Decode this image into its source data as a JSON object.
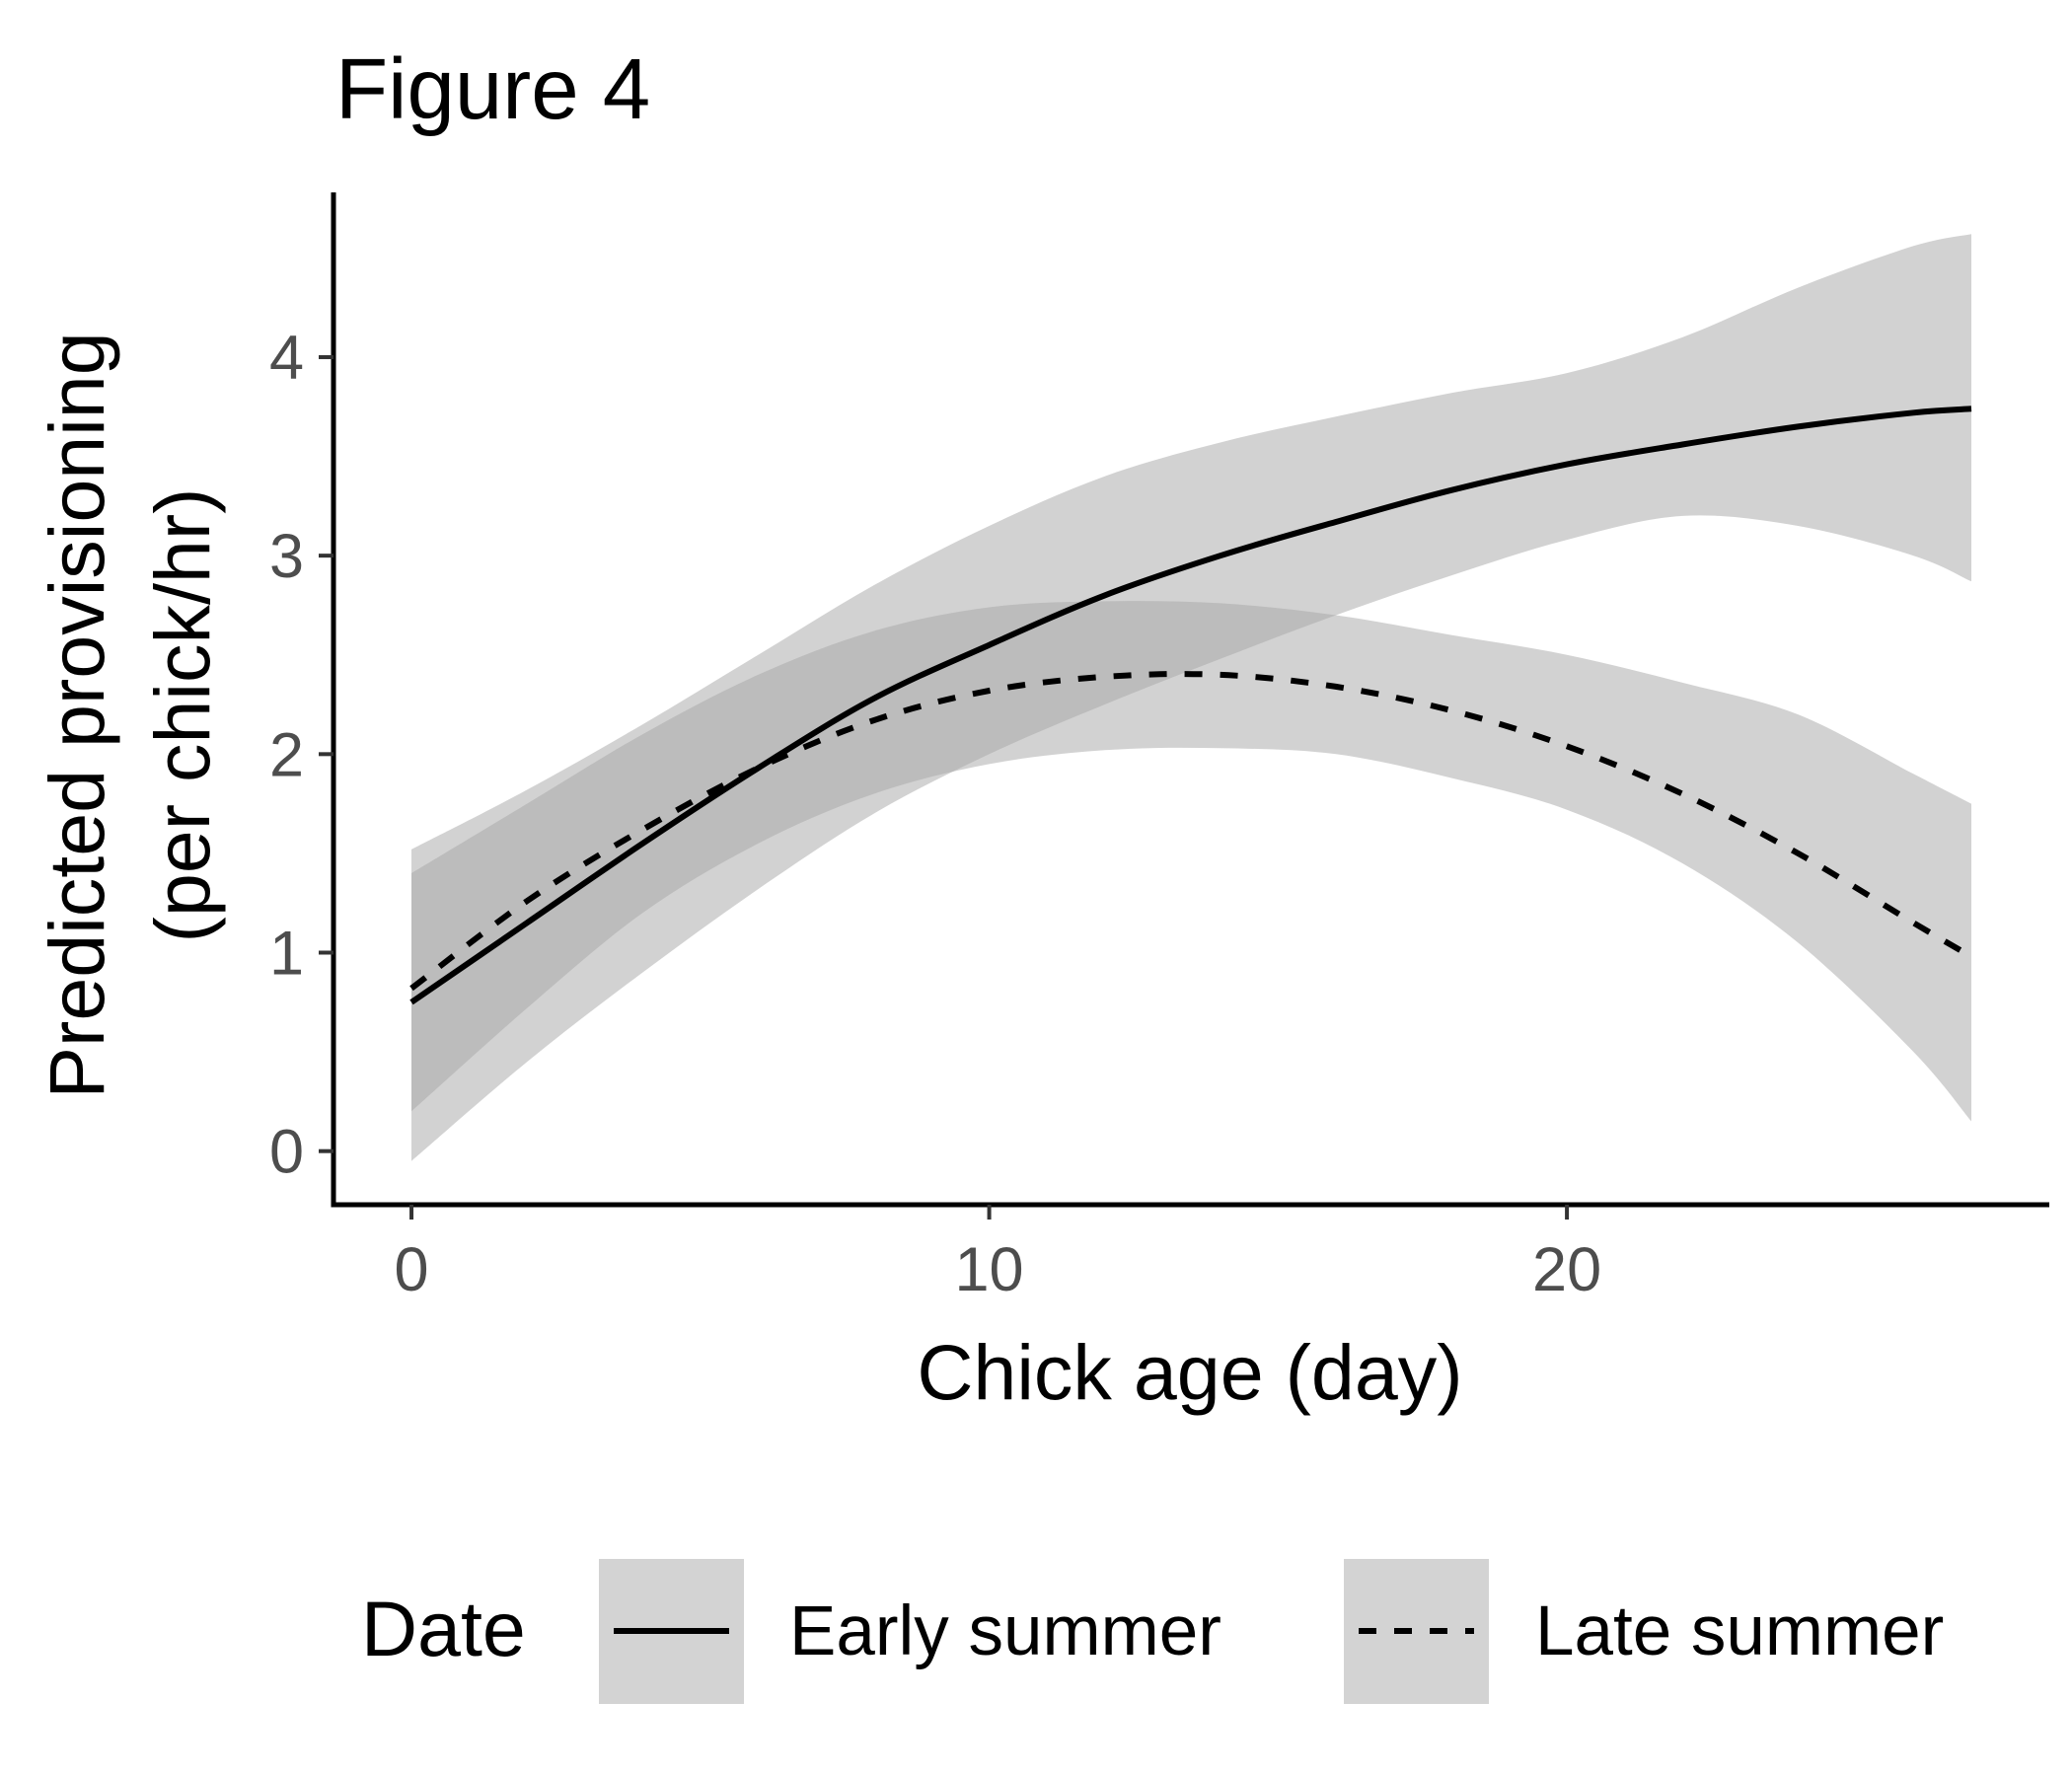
{
  "chart_data": {
    "type": "line",
    "title": "Figure 4",
    "xlabel": "Chick age (day)",
    "ylabel_lines": [
      "Predicted provisioning",
      "(per chick/hr)"
    ],
    "xlim": [
      -1.35,
      28.35
    ],
    "ylim": [
      -0.27,
      4.83
    ],
    "x_ticks": [
      0,
      10,
      20
    ],
    "y_ticks": [
      0,
      1,
      2,
      3,
      4
    ],
    "x_tick_labels": [
      "0",
      "10",
      "20"
    ],
    "y_tick_labels": [
      "0",
      "1",
      "2",
      "3",
      "4"
    ],
    "grid": false,
    "legend": {
      "title": "Date",
      "position": "bottom"
    },
    "colors": {
      "line": "#000000",
      "ribbon": "#a6a6a6",
      "legend_key_bg": "#d3d3d3",
      "tick_text": "#4d4d4d"
    },
    "series": [
      {
        "name": "Early summer",
        "linetype": "solid",
        "x": [
          0,
          2,
          4,
          6,
          8,
          10,
          12,
          14,
          16,
          18,
          20,
          22,
          24,
          26,
          27
        ],
        "y": [
          0.75,
          1.15,
          1.55,
          1.93,
          2.28,
          2.55,
          2.8,
          3.0,
          3.17,
          3.33,
          3.46,
          3.56,
          3.65,
          3.72,
          3.74
        ],
        "lower": [
          -0.05,
          0.45,
          0.9,
          1.32,
          1.7,
          2.0,
          2.25,
          2.48,
          2.7,
          2.9,
          3.08,
          3.2,
          3.15,
          3.0,
          2.87
        ],
        "upper": [
          1.52,
          1.82,
          2.15,
          2.5,
          2.85,
          3.15,
          3.4,
          3.57,
          3.7,
          3.82,
          3.92,
          4.1,
          4.35,
          4.56,
          4.62
        ]
      },
      {
        "name": "Late summer",
        "linetype": "dashed",
        "x": [
          0,
          2,
          4,
          6,
          8,
          10,
          12,
          14,
          16,
          18,
          20,
          22,
          24,
          26,
          27
        ],
        "y": [
          0.82,
          1.26,
          1.62,
          1.93,
          2.17,
          2.32,
          2.39,
          2.4,
          2.34,
          2.22,
          2.04,
          1.8,
          1.5,
          1.15,
          0.98
        ],
        "lower": [
          0.2,
          0.72,
          1.2,
          1.55,
          1.8,
          1.95,
          2.02,
          2.03,
          2.0,
          1.88,
          1.72,
          1.45,
          1.05,
          0.5,
          0.15
        ],
        "upper": [
          1.4,
          1.75,
          2.1,
          2.4,
          2.62,
          2.74,
          2.77,
          2.76,
          2.7,
          2.6,
          2.5,
          2.36,
          2.2,
          1.9,
          1.75
        ]
      }
    ]
  }
}
